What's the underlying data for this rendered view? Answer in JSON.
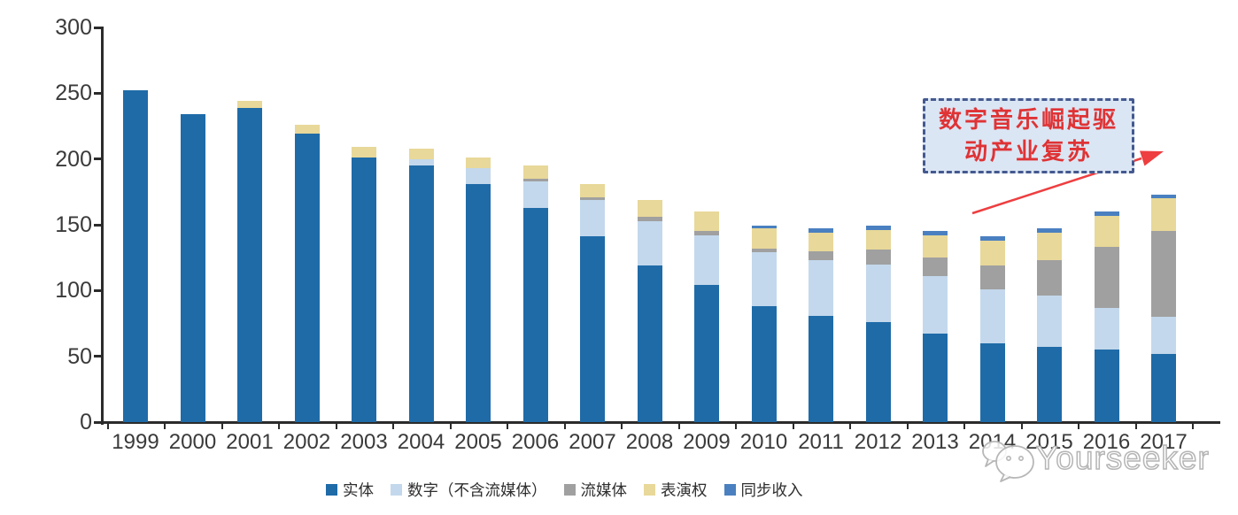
{
  "chart_data": {
    "type": "bar",
    "stacked": true,
    "title": "",
    "xlabel": "",
    "ylabel": "",
    "ylim": [
      0,
      300
    ],
    "yticks": [
      0,
      50,
      100,
      150,
      200,
      250,
      300
    ],
    "grid": false,
    "legend_position": "bottom",
    "categories": [
      "1999",
      "2000",
      "2001",
      "2002",
      "2003",
      "2004",
      "2005",
      "2006",
      "2007",
      "2008",
      "2009",
      "2010",
      "2011",
      "2012",
      "2013",
      "2014",
      "2015",
      "2016",
      "2017"
    ],
    "series": [
      {
        "name": "实体",
        "color": "#1f6ba8",
        "values": [
          252,
          234,
          239,
          219,
          201,
          195,
          181,
          163,
          141,
          119,
          104,
          88,
          81,
          76,
          67,
          60,
          57,
          55,
          52
        ]
      },
      {
        "name": "数字（不含流媒体）",
        "color": "#c3d8ec",
        "values": [
          0,
          0,
          0,
          0,
          0,
          5,
          12,
          20,
          28,
          34,
          38,
          41,
          42,
          44,
          44,
          41,
          39,
          32,
          28
        ]
      },
      {
        "name": "流媒体",
        "color": "#a0a0a0",
        "values": [
          0,
          0,
          0,
          0,
          0,
          0,
          0,
          2,
          2,
          3,
          3,
          3,
          7,
          11,
          14,
          18,
          27,
          46,
          65
        ]
      },
      {
        "name": "表演权",
        "color": "#e8d899",
        "values": [
          0,
          0,
          5,
          7,
          8,
          8,
          8,
          10,
          10,
          13,
          15,
          15,
          14,
          15,
          17,
          19,
          21,
          24,
          25
        ]
      },
      {
        "name": "同步收入",
        "color": "#4a80c0",
        "values": [
          0,
          0,
          0,
          0,
          0,
          0,
          0,
          0,
          0,
          0,
          0,
          2,
          3,
          3,
          3,
          3,
          3,
          3,
          3
        ]
      }
    ],
    "totals": [
      252,
      234,
      244,
      226,
      209,
      208,
      201,
      195,
      181,
      169,
      160,
      149,
      147,
      149,
      145,
      141,
      147,
      160,
      173
    ]
  },
  "annotation": {
    "text": "数字音乐崛起驱动产业复苏",
    "line1": "数字音乐崛起驱",
    "line2": "动产业复苏",
    "text_color": "#df3335",
    "box_fill": "#dbe6f4",
    "box_border": "#44598f",
    "arrow_color": "#ee3e40"
  },
  "watermark": {
    "text": "Yourseeker",
    "icon": "wechat-icon",
    "color": "#b5b5b5"
  },
  "axis_color": "#2b2b2b",
  "label_color": "#3a3a3a"
}
